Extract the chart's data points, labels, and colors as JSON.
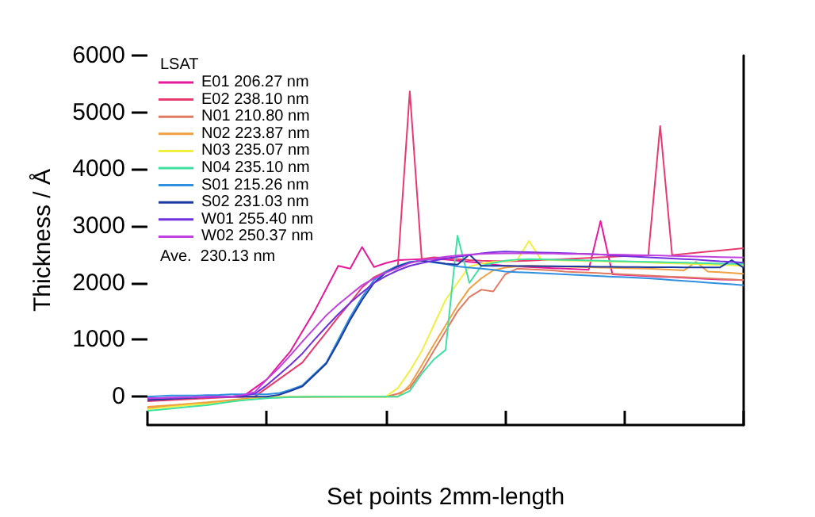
{
  "chart_data": {
    "type": "line",
    "xlabel": "Set points 2mm-length",
    "ylabel": "Thickness / Å",
    "legend_title": "LSAT",
    "annotations": [
      "Ave.  230.13 nm"
    ],
    "categories": [
      null,
      null,
      null,
      null,
      null,
      null,
      null,
      null,
      null,
      null,
      null,
      null,
      null,
      null,
      null,
      null,
      null,
      null,
      null,
      null,
      null,
      null,
      null,
      null,
      null,
      null,
      null,
      null,
      null,
      null,
      null,
      null,
      null,
      null,
      null,
      null,
      null,
      null,
      null,
      null,
      null,
      null,
      null,
      null,
      null,
      null,
      null,
      null,
      null,
      null,
      null
    ],
    "ylim": [
      -500,
      6000
    ],
    "yticks": [
      0,
      1000,
      2000,
      3000,
      4000,
      5000,
      6000
    ],
    "tick_labels": "y",
    "grid": false,
    "legend": "top left",
    "marker": "none",
    "line_style": "solid",
    "series": [
      {
        "name": "E01 206.27 nm",
        "color": "#e8189a",
        "values": [
          -50,
          -40,
          -30,
          -20,
          -10,
          -10,
          0,
          0,
          0,
          150,
          300,
          550,
          800,
          1150,
          1500,
          1900,
          2300,
          2250,
          2630,
          2280,
          2350,
          2400,
          2410,
          2420,
          2420,
          2410,
          2390,
          2370,
          2350,
          2320,
          2300,
          2290,
          2280,
          2270,
          2260,
          2250,
          2240,
          2230,
          3090,
          2150,
          2140,
          2130,
          2120,
          2110,
          2100,
          2090,
          2080,
          2070,
          2060,
          2055,
          2050
        ]
      },
      {
        "name": "E02 238.10 nm",
        "color": "#e83a6e",
        "values": [
          -80,
          -70,
          -60,
          -50,
          -40,
          -30,
          -20,
          -10,
          -5,
          0,
          150,
          300,
          450,
          600,
          870,
          1130,
          1400,
          1650,
          1920,
          2100,
          2200,
          2300,
          5370,
          2420,
          2450,
          2440,
          2420,
          2400,
          2390,
          2385,
          2380,
          2385,
          2390,
          2400,
          2410,
          2420,
          2430,
          2440,
          2450,
          2460,
          2470,
          2475,
          2480,
          4760,
          2490,
          2510,
          2530,
          2550,
          2570,
          2590,
          2610
        ]
      },
      {
        "name": "N01 210.80 nm",
        "color": "#e07a60",
        "values": [
          -200,
          -185,
          -170,
          -150,
          -135,
          -120,
          -100,
          -80,
          -60,
          -40,
          -20,
          -15,
          -10,
          -10,
          -5,
          -5,
          0,
          0,
          0,
          0,
          0,
          50,
          150,
          450,
          800,
          1150,
          1500,
          1750,
          1880,
          1850,
          2150,
          2250,
          2240,
          2230,
          2220,
          2200,
          2190,
          2180,
          2170,
          2160,
          2150,
          2140,
          2130,
          2120,
          2110,
          2100,
          2090,
          2080,
          2070,
          2060,
          2050
        ]
      },
      {
        "name": "N02 223.87 nm",
        "color": "#f0a040",
        "values": [
          -180,
          -165,
          -150,
          -135,
          -115,
          -100,
          -80,
          -60,
          -40,
          -25,
          -10,
          -5,
          -5,
          0,
          0,
          0,
          0,
          0,
          0,
          0,
          0,
          0,
          200,
          550,
          910,
          1250,
          1600,
          1900,
          2080,
          2220,
          2270,
          2290,
          2300,
          2295,
          2290,
          2285,
          2280,
          2275,
          2270,
          2265,
          2260,
          2255,
          2250,
          2240,
          2230,
          2220,
          2370,
          2200,
          2190,
          2175,
          2160
        ]
      },
      {
        "name": "N03 235.07 nm",
        "color": "#f0f040",
        "values": [
          -220,
          -200,
          -180,
          -160,
          -140,
          -130,
          -110,
          -90,
          -60,
          -40,
          -20,
          -10,
          -5,
          0,
          0,
          0,
          0,
          0,
          0,
          0,
          0,
          150,
          450,
          800,
          1250,
          1700,
          2000,
          2290,
          2340,
          2370,
          2380,
          2400,
          2740,
          2410,
          2400,
          2395,
          2390,
          2385,
          2380,
          2375,
          2370,
          2365,
          2360,
          2350,
          2345,
          2340,
          2330,
          2325,
          2315,
          2310,
          2300
        ]
      },
      {
        "name": "N04 235.10 nm",
        "color": "#40e0a0",
        "values": [
          -250,
          -230,
          -210,
          -190,
          -170,
          -150,
          -120,
          -90,
          -65,
          -45,
          -30,
          -20,
          -10,
          -5,
          0,
          0,
          0,
          0,
          0,
          0,
          0,
          0,
          100,
          400,
          650,
          820,
          2830,
          2000,
          2300,
          2350,
          2390,
          2410,
          2420,
          2415,
          2410,
          2405,
          2400,
          2395,
          2390,
          2385,
          2380,
          2375,
          2370,
          2365,
          2360,
          2355,
          2350,
          2345,
          2340,
          2335,
          2330
        ]
      },
      {
        "name": "S01 215.26 nm",
        "color": "#2f8fe0",
        "values": [
          0,
          10,
          20,
          20,
          20,
          25,
          30,
          40,
          40,
          40,
          40,
          60,
          120,
          200,
          400,
          600,
          1000,
          1400,
          1750,
          2050,
          2200,
          2300,
          2370,
          2390,
          2360,
          2330,
          2290,
          2270,
          2250,
          2230,
          2200,
          2190,
          2180,
          2170,
          2160,
          2150,
          2140,
          2130,
          2120,
          2110,
          2100,
          2090,
          2080,
          2065,
          2050,
          2035,
          2020,
          2005,
          1990,
          1975,
          1960
        ]
      },
      {
        "name": "S02 231.03 nm",
        "color": "#1a3aa0",
        "values": [
          -60,
          -50,
          -40,
          -30,
          -20,
          -10,
          0,
          0,
          0,
          0,
          0,
          30,
          100,
          180,
          380,
          580,
          950,
          1350,
          1700,
          2000,
          2180,
          2290,
          2360,
          2390,
          2370,
          2340,
          2320,
          2500,
          2300,
          2300,
          2300,
          2298,
          2296,
          2294,
          2292,
          2290,
          2288,
          2286,
          2284,
          2282,
          2280,
          2278,
          2277,
          2276,
          2275,
          2274,
          2273,
          2272,
          2271,
          2400,
          2266
        ]
      },
      {
        "name": "W01 255.40 nm",
        "color": "#7030e0",
        "values": [
          -30,
          -25,
          -20,
          -15,
          -10,
          -5,
          0,
          0,
          20,
          50,
          200,
          380,
          560,
          760,
          1000,
          1230,
          1450,
          1650,
          1830,
          2000,
          2120,
          2220,
          2300,
          2350,
          2390,
          2430,
          2460,
          2490,
          2520,
          2540,
          2550,
          2545,
          2540,
          2535,
          2530,
          2525,
          2515,
          2510,
          2500,
          2480,
          2470,
          2460,
          2450,
          2440,
          2430,
          2420,
          2410,
          2395,
          2380,
          2370,
          2357
        ]
      },
      {
        "name": "W02 250.37 nm",
        "color": "#c040e0",
        "values": [
          -30,
          -25,
          -20,
          -15,
          -10,
          -5,
          0,
          0,
          30,
          80,
          300,
          500,
          730,
          970,
          1200,
          1430,
          1620,
          1790,
          1960,
          2080,
          2180,
          2260,
          2350,
          2400,
          2430,
          2460,
          2480,
          2500,
          2510,
          2515,
          2520,
          2520,
          2520,
          2515,
          2515,
          2510,
          2510,
          2505,
          2500,
          2500,
          2495,
          2490,
          2485,
          2480,
          2475,
          2470,
          2465,
          2460,
          2455,
          2450,
          2445
        ]
      }
    ]
  }
}
